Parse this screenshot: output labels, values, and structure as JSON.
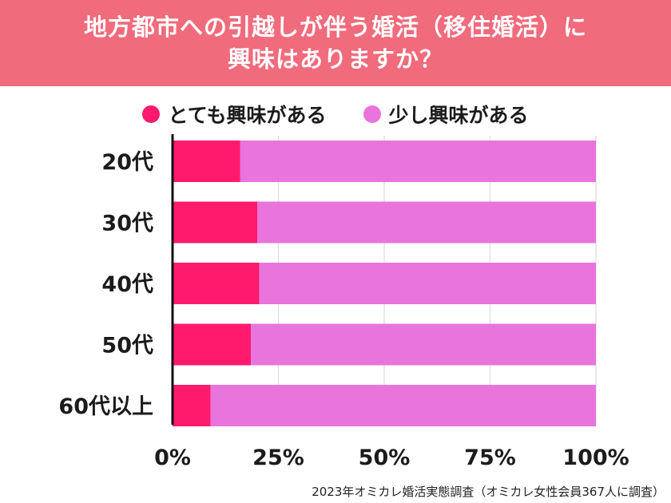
{
  "header": {
    "title_line1": "地方都市への引越しが伴う婚活（移住婚活）に",
    "title_line2": "興味はありますか？"
  },
  "colors": {
    "header_bg": "#f06b7b",
    "very": "#ff1a6e",
    "some": "#e874dc",
    "grid": "#dddddd",
    "text": "#1b1b1b"
  },
  "chart_data": {
    "type": "bar",
    "orientation": "horizontal",
    "stacked": true,
    "categories": [
      "20代",
      "30代",
      "40代",
      "50代",
      "60代以上"
    ],
    "series": [
      {
        "name": "とても興味がある",
        "values": [
          16,
          20,
          20.5,
          18.5,
          9
        ]
      },
      {
        "name": "少し興味がある",
        "values": [
          84,
          80,
          79.5,
          81.5,
          91
        ]
      }
    ],
    "xlim": [
      0,
      100
    ],
    "xticks": [
      "0%",
      "25%",
      "50%",
      "75%",
      "100%"
    ],
    "grid": true,
    "legend": "top"
  },
  "footer": {
    "source": "2023年オミカレ婚活実態調査（オミカレ女性会員367人に調査）"
  }
}
